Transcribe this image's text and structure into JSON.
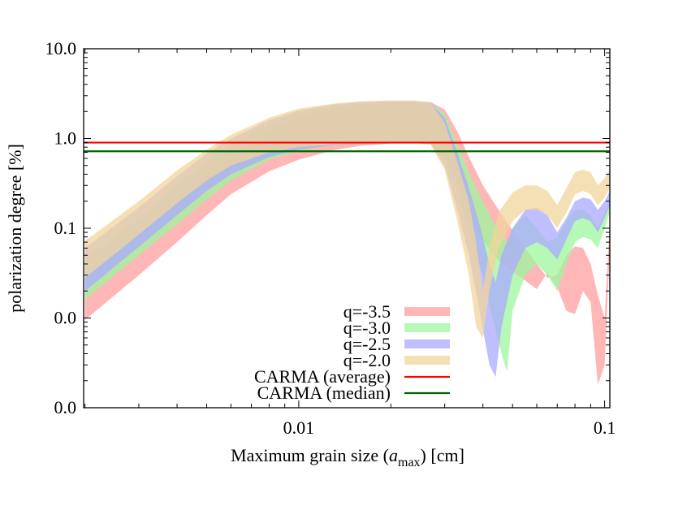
{
  "chart_data": {
    "type": "area",
    "title": "",
    "xlabel": "Maximum grain size (a_max) [cm]",
    "xlabel_parts": {
      "prefix": "Maximum grain size (",
      "var": "a",
      "sub": "max",
      "suffix": ") [cm]"
    },
    "ylabel": "polarization degree [%]",
    "xscale": "log",
    "yscale": "log",
    "xlim": [
      0.00198,
      0.104
    ],
    "ylim": [
      0.001,
      10
    ],
    "x_ticks": [
      {
        "value": 0.01,
        "label": "0.01"
      },
      {
        "value": 0.1,
        "label": "0.1"
      }
    ],
    "y_ticks": [
      {
        "value": 10,
        "label": "10.0"
      },
      {
        "value": 1,
        "label": "1.0"
      },
      {
        "value": 0.1,
        "label": "0.1"
      },
      {
        "value": 0.01,
        "label": "0.0"
      },
      {
        "value": 0.001,
        "label": "0.0"
      }
    ],
    "grid": false,
    "legend_position": "lower center (inside)",
    "series": [
      {
        "name": "q=-3.5",
        "kind": "band",
        "color": "#ff9e9e",
        "opacity": 0.75,
        "x": [
          0.002,
          0.003,
          0.004,
          0.005,
          0.006,
          0.008,
          0.01,
          0.013,
          0.016,
          0.02,
          0.024,
          0.027,
          0.03,
          0.033,
          0.036,
          0.04,
          0.045,
          0.05,
          0.055,
          0.06,
          0.065,
          0.07,
          0.075,
          0.08,
          0.085,
          0.09,
          0.095,
          0.1,
          0.104
        ],
        "upper": [
          0.027,
          0.085,
          0.2,
          0.38,
          0.62,
          1.2,
          1.7,
          2.2,
          2.45,
          2.55,
          2.6,
          2.55,
          2.1,
          1.2,
          0.62,
          0.3,
          0.16,
          0.095,
          0.06,
          0.04,
          0.028,
          0.03,
          0.05,
          0.063,
          0.06,
          0.04,
          0.018,
          0.01,
          0.12
        ],
        "lower": [
          0.0095,
          0.03,
          0.07,
          0.14,
          0.24,
          0.43,
          0.58,
          0.74,
          0.83,
          0.88,
          0.89,
          0.89,
          0.72,
          0.32,
          0.15,
          0.072,
          0.044,
          0.033,
          0.026,
          0.021,
          0.032,
          0.022,
          0.012,
          0.011,
          0.02,
          0.015,
          0.0018,
          0.003,
          0.06
        ]
      },
      {
        "name": "q=-3.0",
        "kind": "band",
        "color": "#9ef59e",
        "opacity": 0.75,
        "x": [
          0.002,
          0.003,
          0.004,
          0.005,
          0.006,
          0.008,
          0.01,
          0.013,
          0.016,
          0.02,
          0.024,
          0.027,
          0.03,
          0.033,
          0.036,
          0.04,
          0.043,
          0.046,
          0.048,
          0.05,
          0.055,
          0.06,
          0.065,
          0.07,
          0.075,
          0.08,
          0.085,
          0.09,
          0.095,
          0.1,
          0.104
        ],
        "upper": [
          0.045,
          0.13,
          0.3,
          0.55,
          0.85,
          1.45,
          1.95,
          2.3,
          2.5,
          2.6,
          2.6,
          2.5,
          1.9,
          0.9,
          0.42,
          0.2,
          0.12,
          0.09,
          0.07,
          0.1,
          0.14,
          0.1,
          0.07,
          0.08,
          0.12,
          0.16,
          0.16,
          0.14,
          0.1,
          0.15,
          0.2
        ],
        "lower": [
          0.016,
          0.05,
          0.11,
          0.21,
          0.34,
          0.58,
          0.73,
          0.83,
          0.87,
          0.89,
          0.89,
          0.88,
          0.6,
          0.25,
          0.09,
          0.03,
          0.01,
          0.004,
          0.0025,
          0.012,
          0.03,
          0.04,
          0.03,
          0.02,
          0.04,
          0.07,
          0.08,
          0.075,
          0.06,
          0.1,
          0.15
        ]
      },
      {
        "name": "q=-2.5",
        "kind": "band",
        "color": "#a9a9ff",
        "opacity": 0.75,
        "x": [
          0.002,
          0.003,
          0.004,
          0.005,
          0.006,
          0.008,
          0.01,
          0.013,
          0.016,
          0.02,
          0.024,
          0.027,
          0.03,
          0.033,
          0.036,
          0.039,
          0.042,
          0.044,
          0.046,
          0.05,
          0.055,
          0.06,
          0.065,
          0.07,
          0.075,
          0.08,
          0.085,
          0.09,
          0.095,
          0.1,
          0.104
        ],
        "upper": [
          0.06,
          0.17,
          0.38,
          0.68,
          1.0,
          1.6,
          2.05,
          2.4,
          2.55,
          2.6,
          2.6,
          2.5,
          1.7,
          0.7,
          0.28,
          0.11,
          0.04,
          0.025,
          0.05,
          0.1,
          0.16,
          0.17,
          0.14,
          0.09,
          0.13,
          0.2,
          0.22,
          0.21,
          0.16,
          0.2,
          0.26
        ],
        "lower": [
          0.02,
          0.062,
          0.14,
          0.26,
          0.4,
          0.62,
          0.75,
          0.84,
          0.88,
          0.89,
          0.89,
          0.86,
          0.5,
          0.16,
          0.05,
          0.012,
          0.003,
          0.0022,
          0.008,
          0.03,
          0.06,
          0.07,
          0.06,
          0.045,
          0.075,
          0.12,
          0.13,
          0.12,
          0.09,
          0.13,
          0.18
        ]
      },
      {
        "name": "q=-2.0",
        "kind": "band",
        "color": "#f1d49b",
        "opacity": 0.75,
        "x": [
          0.002,
          0.003,
          0.004,
          0.005,
          0.006,
          0.008,
          0.01,
          0.013,
          0.016,
          0.02,
          0.024,
          0.027,
          0.03,
          0.033,
          0.036,
          0.038,
          0.04,
          0.042,
          0.045,
          0.05,
          0.055,
          0.06,
          0.065,
          0.07,
          0.075,
          0.08,
          0.085,
          0.09,
          0.095,
          0.1,
          0.104
        ],
        "upper": [
          0.072,
          0.2,
          0.44,
          0.75,
          1.1,
          1.7,
          2.15,
          2.45,
          2.6,
          2.65,
          2.65,
          2.5,
          1.5,
          0.55,
          0.2,
          0.07,
          0.02,
          0.06,
          0.15,
          0.25,
          0.3,
          0.3,
          0.26,
          0.18,
          0.28,
          0.42,
          0.45,
          0.42,
          0.3,
          0.36,
          0.45
        ],
        "lower": [
          0.028,
          0.085,
          0.19,
          0.34,
          0.5,
          0.7,
          0.8,
          0.86,
          0.89,
          0.9,
          0.9,
          0.85,
          0.45,
          0.12,
          0.03,
          0.008,
          0.006,
          0.02,
          0.06,
          0.12,
          0.16,
          0.16,
          0.14,
          0.1,
          0.15,
          0.24,
          0.26,
          0.24,
          0.18,
          0.22,
          0.28
        ]
      },
      {
        "name": "CARMA (average)",
        "kind": "hline",
        "color": "#ff0000",
        "y": 0.9
      },
      {
        "name": "CARMA (median)",
        "kind": "hline",
        "color": "#006400",
        "y": 0.72
      }
    ]
  }
}
